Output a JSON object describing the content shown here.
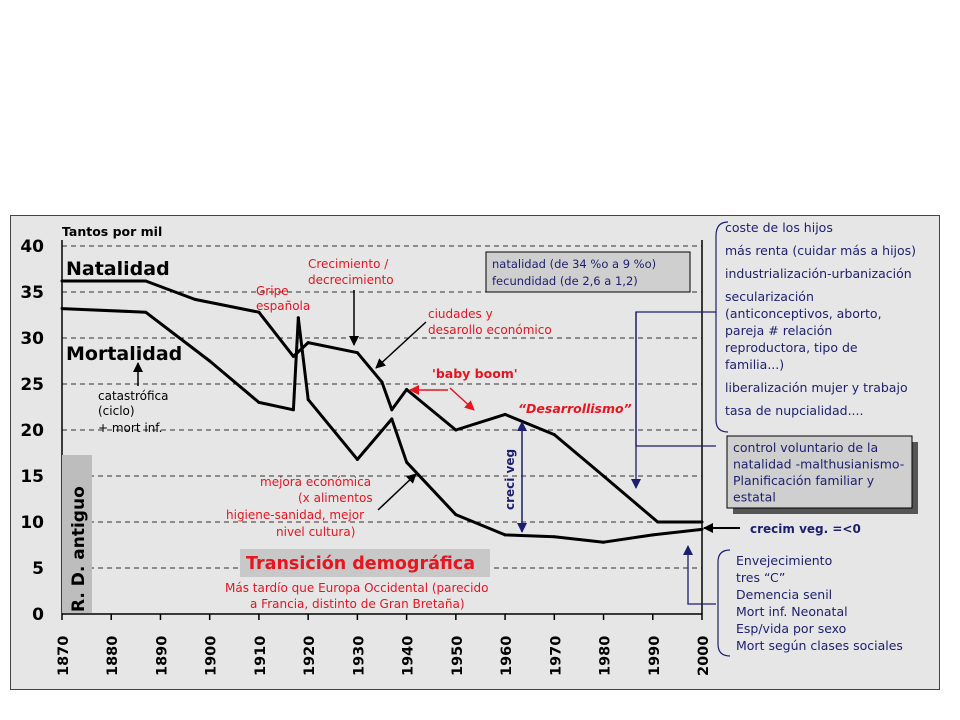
{
  "chart_data": {
    "type": "line",
    "ylabel": "Tantos por mil",
    "ylim": [
      0,
      40
    ],
    "yticks": [
      0,
      5,
      10,
      15,
      20,
      25,
      30,
      35,
      40
    ],
    "xlim": [
      1870,
      2000
    ],
    "xticks": [
      1870,
      1880,
      1890,
      1900,
      1910,
      1920,
      1930,
      1940,
      1950,
      1960,
      1970,
      1980,
      1990,
      2000
    ],
    "grid": "horizontal dashed",
    "series": [
      {
        "name": "Natalidad",
        "points": [
          [
            1870,
            36.2
          ],
          [
            1887,
            36.2
          ],
          [
            1897,
            34.2
          ],
          [
            1910,
            32.8
          ],
          [
            1917,
            28
          ],
          [
            1920,
            29.5
          ],
          [
            1930,
            28.4
          ],
          [
            1935,
            25.2
          ],
          [
            1937,
            22.2
          ],
          [
            1940,
            24.4
          ],
          [
            1950,
            20
          ],
          [
            1960,
            21.7
          ],
          [
            1970,
            19.5
          ],
          [
            1980,
            15
          ],
          [
            1991,
            10
          ],
          [
            2000,
            10
          ]
        ]
      },
      {
        "name": "Mortalidad",
        "points": [
          [
            1870,
            33.2
          ],
          [
            1887,
            32.8
          ],
          [
            1900,
            27.5
          ],
          [
            1910,
            23
          ],
          [
            1917,
            22.2
          ],
          [
            1918,
            32.2
          ],
          [
            1920,
            23.3
          ],
          [
            1930,
            16.8
          ],
          [
            1937,
            21.2
          ],
          [
            1940,
            16.5
          ],
          [
            1950,
            10.8
          ],
          [
            1960,
            8.6
          ],
          [
            1970,
            8.4
          ],
          [
            1980,
            7.8
          ],
          [
            1990,
            8.6
          ],
          [
            2000,
            9.2
          ]
        ]
      }
    ]
  },
  "labels": {
    "natalidad": "Natalidad",
    "mortalidad": "Mortalidad",
    "rd_antiguo": "R. D. antiguo",
    "creci_veg": "creci veg"
  },
  "annotations": {
    "catastrofica": [
      "catastrófica",
      "(ciclo)",
      "+ mort inf."
    ],
    "gripe": [
      "Gripe",
      "española"
    ],
    "crecimiento": [
      "Crecimiento /",
      "decrecimiento"
    ],
    "ciudades": [
      "ciudades y",
      "desarollo económico"
    ],
    "baby_boom": "'baby boom'",
    "desarrollismo": "“Desarrollismo”",
    "mejora": [
      "mejora económica",
      "(x alimentos",
      "higiene-sanidad, mejor",
      "nivel cultura)"
    ],
    "transicion_title": "Transición demográfica",
    "transicion_sub": [
      "Más tardío que Europa Occidental (parecido",
      "a Francia, distinto de Gran Bretaña)"
    ],
    "crecim_neg": "crecim veg. =<0"
  },
  "info_box": [
    "natalidad (de 34 %o a 9 %o)",
    "fecundidad (de 2,6 a 1,2)"
  ],
  "causes_list": [
    [
      "coste de los hijos"
    ],
    [
      "más renta (cuidar más a hijos)"
    ],
    [
      "industrialización-urbanización"
    ],
    [
      "secularización",
      "(anticonceptivos, aborto,",
      "pareja # relación",
      "reproductora, tipo de",
      "familia...)"
    ],
    [
      "liberalización mujer y trabajo"
    ],
    [
      "tasa de nupcialidad...."
    ]
  ],
  "control_box": [
    "control voluntario de la",
    "natalidad -malthusianismo-",
    "Planificación familiar y",
    "estatal"
  ],
  "aging_list": [
    "Envejecimiento",
    "tres “C”",
    "Demencia senil",
    "Mort inf. Neonatal",
    "Esp/vida por sexo",
    "Mort según clases sociales"
  ],
  "colors": {
    "frame_bg": "#e6e6e6",
    "red": "#e8141e",
    "navy": "#1c1f6e",
    "box_gray": "#cfcfcf"
  }
}
